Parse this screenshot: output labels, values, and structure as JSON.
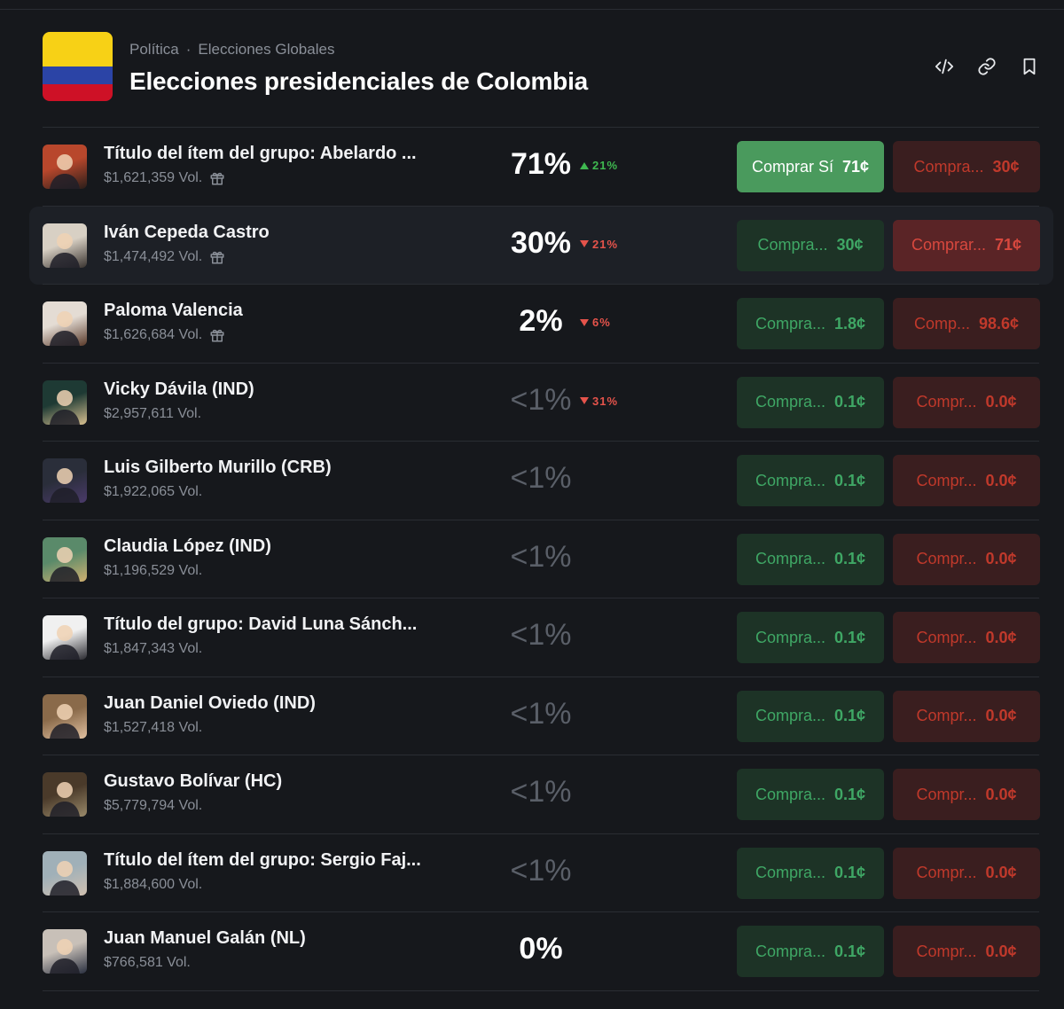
{
  "header": {
    "breadcrumb": [
      "Política",
      "Elecciones Globales"
    ],
    "breadcrumb_sep": "·",
    "title": "Elecciones presidenciales de Colombia",
    "actions": [
      "embed-icon",
      "link-icon",
      "bookmark-icon"
    ]
  },
  "rows": [
    {
      "name": "Título del ítem del grupo: Abelardo ...",
      "vol": "$1,621,359 Vol.",
      "gift": true,
      "pct": "71%",
      "dim": false,
      "chg": "21%",
      "dir": "up",
      "yes_label": "Comprar Sí",
      "yes_price": "71¢",
      "no_label": "Compra...",
      "no_price": "30¢",
      "state": "yes-active"
    },
    {
      "name": "Iván Cepeda Castro",
      "vol": "$1,474,492 Vol.",
      "gift": true,
      "pct": "30%",
      "dim": false,
      "chg": "21%",
      "dir": "down",
      "yes_label": "Compra...",
      "yes_price": "30¢",
      "no_label": "Comprar...",
      "no_price": "71¢",
      "state": "row-hover"
    },
    {
      "name": "Paloma Valencia",
      "vol": "$1,626,684 Vol.",
      "gift": true,
      "pct": "2%",
      "dim": false,
      "chg": "6%",
      "dir": "down",
      "yes_label": "Compra...",
      "yes_price": "1.8¢",
      "no_label": "Comp...",
      "no_price": "98.6¢",
      "state": ""
    },
    {
      "name": "Vicky Dávila (IND)",
      "vol": "$2,957,611 Vol.",
      "gift": false,
      "pct": "<1%",
      "dim": true,
      "chg": "31%",
      "dir": "down",
      "yes_label": "Compra...",
      "yes_price": "0.1¢",
      "no_label": "Compr...",
      "no_price": "0.0¢",
      "state": ""
    },
    {
      "name": "Luis Gilberto Murillo (CRB)",
      "vol": "$1,922,065 Vol.",
      "gift": false,
      "pct": "<1%",
      "dim": true,
      "chg": "",
      "dir": "",
      "yes_label": "Compra...",
      "yes_price": "0.1¢",
      "no_label": "Compr...",
      "no_price": "0.0¢",
      "state": ""
    },
    {
      "name": "Claudia López (IND)",
      "vol": "$1,196,529 Vol.",
      "gift": false,
      "pct": "<1%",
      "dim": true,
      "chg": "",
      "dir": "",
      "yes_label": "Compra...",
      "yes_price": "0.1¢",
      "no_label": "Compr...",
      "no_price": "0.0¢",
      "state": ""
    },
    {
      "name": "Título del grupo: David Luna Sánch...",
      "vol": "$1,847,343 Vol.",
      "gift": false,
      "pct": "<1%",
      "dim": true,
      "chg": "",
      "dir": "",
      "yes_label": "Compra...",
      "yes_price": "0.1¢",
      "no_label": "Compr...",
      "no_price": "0.0¢",
      "state": ""
    },
    {
      "name": "Juan Daniel Oviedo (IND)",
      "vol": "$1,527,418 Vol.",
      "gift": false,
      "pct": "<1%",
      "dim": true,
      "chg": "",
      "dir": "",
      "yes_label": "Compra...",
      "yes_price": "0.1¢",
      "no_label": "Compr...",
      "no_price": "0.0¢",
      "state": ""
    },
    {
      "name": "Gustavo Bolívar (HC)",
      "vol": "$5,779,794 Vol.",
      "gift": false,
      "pct": "<1%",
      "dim": true,
      "chg": "",
      "dir": "",
      "yes_label": "Compra...",
      "yes_price": "0.1¢",
      "no_label": "Compr...",
      "no_price": "0.0¢",
      "state": ""
    },
    {
      "name": "Título del ítem del grupo: Sergio Faj...",
      "vol": "$1,884,600 Vol.",
      "gift": false,
      "pct": "<1%",
      "dim": true,
      "chg": "",
      "dir": "",
      "yes_label": "Compra...",
      "yes_price": "0.1¢",
      "no_label": "Compr...",
      "no_price": "0.0¢",
      "state": ""
    },
    {
      "name": "Juan Manuel Galán (NL)",
      "vol": "$766,581 Vol.",
      "gift": false,
      "pct": "0%",
      "dim": false,
      "chg": "",
      "dir": "",
      "yes_label": "Compra...",
      "yes_price": "0.1¢",
      "no_label": "Compr...",
      "no_price": "0.0¢",
      "state": ""
    }
  ],
  "colors": {
    "background": "#16181c",
    "yes": "#3fa765",
    "no": "#c0392b",
    "up": "#3fb950",
    "down": "#e5534b",
    "flag": [
      "#f7d116",
      "#2b44a6",
      "#ce1126"
    ]
  }
}
